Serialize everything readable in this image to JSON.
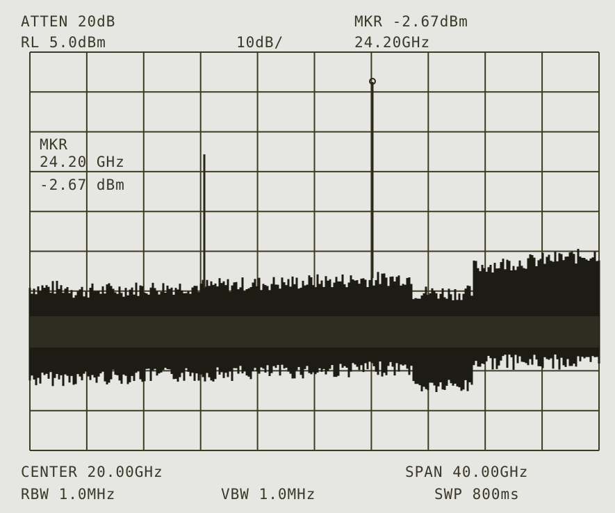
{
  "header": {
    "atten": "ATTEN 20dB",
    "ref_level": "RL 5.0dBm",
    "scale": "10dB/",
    "marker": "MKR -2.67dBm",
    "marker_freq": "24.20GHz"
  },
  "marker_box": {
    "label": "MKR",
    "freq": "24.20 GHz",
    "level": "-2.67 dBm"
  },
  "footer": {
    "center": "CENTER 20.00GHz",
    "span": "SPAN 40.00GHz",
    "rbw": "RBW 1.0MHz",
    "vbw": "VBW 1.0MHz",
    "sweep": "SWP 800ms"
  }
}
